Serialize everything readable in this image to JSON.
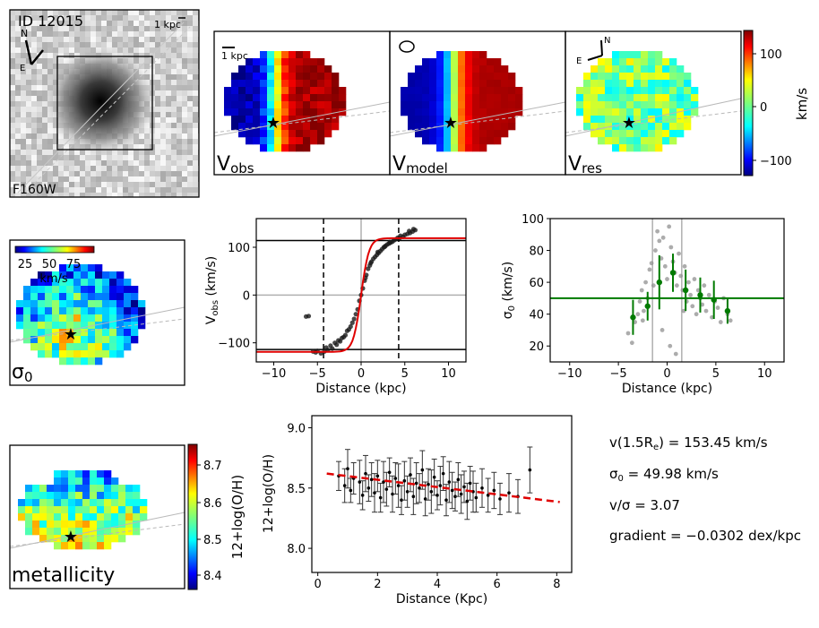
{
  "galaxy": {
    "id_label": "ID 12015",
    "filter": "F160W",
    "scale_label": "1 kpc",
    "north": "N",
    "east": "E"
  },
  "velocity_maps": {
    "panels": [
      {
        "label": "V",
        "sub": "obs"
      },
      {
        "label": "V",
        "sub": "model"
      },
      {
        "label": "V",
        "sub": "res"
      }
    ],
    "scale_label": "1 kpc",
    "colorbar": {
      "label": "km/s",
      "ticks": [
        "100",
        "0",
        "−100"
      ]
    }
  },
  "sigma_map": {
    "label": "σ",
    "sub": "0",
    "colorbar_ticks": [
      "25",
      "50",
      "75"
    ],
    "colorbar_unit": "km/s"
  },
  "metallicity_map": {
    "label": "metallicity",
    "colorbar_label": "12+log(O/H)",
    "colorbar_ticks": [
      "8.7",
      "8.6",
      "8.5",
      "8.4"
    ]
  },
  "stats": {
    "vrot": "v(1.5R",
    "vrot_sub": "e",
    "vrot_value": ") = 153.45 km/s",
    "sigma": "σ",
    "sigma_sub": "0",
    "sigma_value": " = 49.98 km/s",
    "ratio": "v/σ = 3.07",
    "gradient": "gradient = −0.0302 dex/kpc"
  },
  "chart_data": [
    {
      "type": "scatter",
      "name": "rotation-curve",
      "xlabel": "Distance (kpc)",
      "ylabel": "V",
      "ylabel_sub": "obs",
      "ylabel_unit": " (km/s)",
      "xlim": [
        -12,
        12
      ],
      "ylim": [
        -140,
        160
      ],
      "xticks": [
        -10,
        -5,
        0,
        5,
        10
      ],
      "yticks": [
        -100,
        0,
        100
      ],
      "xtick_labels": [
        "−10",
        "−5",
        "0",
        "5",
        "10"
      ],
      "ytick_labels": [
        "−100",
        "0",
        "100"
      ],
      "hlines": [
        114,
        -114
      ],
      "vlines_dashed": [
        -4.3,
        4.3
      ],
      "model": {
        "vmax": 119,
        "rt": 0.9
      },
      "points": [
        [
          -6.3,
          -45
        ],
        [
          -6.0,
          -44
        ],
        [
          -5.5,
          -118
        ],
        [
          -5.2,
          -120
        ],
        [
          -5.0,
          -117
        ],
        [
          -4.6,
          -122
        ],
        [
          -4.2,
          -118
        ],
        [
          -4.0,
          -110
        ],
        [
          -3.8,
          -115
        ],
        [
          -3.5,
          -106
        ],
        [
          -3.3,
          -112
        ],
        [
          -3.0,
          -100
        ],
        [
          -2.8,
          -104
        ],
        [
          -2.6,
          -95
        ],
        [
          -2.4,
          -97
        ],
        [
          -2.2,
          -90
        ],
        [
          -2.0,
          -88
        ],
        [
          -1.8,
          -84
        ],
        [
          -1.6,
          -75
        ],
        [
          -1.4,
          -72
        ],
        [
          -1.2,
          -66
        ],
        [
          -1.0,
          -58
        ],
        [
          -0.8,
          -50
        ],
        [
          -0.6,
          -40
        ],
        [
          -0.4,
          -30
        ],
        [
          -0.2,
          -12
        ],
        [
          0.0,
          0
        ],
        [
          0.2,
          14
        ],
        [
          0.4,
          30
        ],
        [
          0.6,
          42
        ],
        [
          0.8,
          55
        ],
        [
          1.0,
          62
        ],
        [
          1.2,
          70
        ],
        [
          1.4,
          76
        ],
        [
          1.6,
          80
        ],
        [
          1.8,
          84
        ],
        [
          2.0,
          88
        ],
        [
          2.2,
          92
        ],
        [
          2.4,
          96
        ],
        [
          2.6,
          100
        ],
        [
          2.8,
          103
        ],
        [
          3.0,
          106
        ],
        [
          3.2,
          108
        ],
        [
          3.4,
          110
        ],
        [
          3.6,
          112
        ],
        [
          3.8,
          115
        ],
        [
          4.0,
          117
        ],
        [
          4.2,
          120
        ],
        [
          4.5,
          124
        ],
        [
          4.8,
          122
        ],
        [
          5.0,
          126
        ],
        [
          5.3,
          128
        ],
        [
          5.6,
          130
        ],
        [
          5.9,
          133
        ],
        [
          6.2,
          136
        ],
        [
          0.5,
          36
        ],
        [
          1.1,
          67
        ],
        [
          1.9,
          90
        ],
        [
          2.7,
          101
        ],
        [
          3.3,
          111
        ],
        [
          4.4,
          119
        ],
        [
          5.5,
          134
        ],
        [
          6.0,
          138
        ]
      ]
    },
    {
      "type": "scatter",
      "name": "dispersion-profile",
      "xlabel": "Distance (kpc)",
      "ylabel": "σ",
      "ylabel_sub": "0",
      "ylabel_unit": " (km/s)",
      "xlim": [
        -12,
        12
      ],
      "ylim": [
        10,
        100
      ],
      "xticks": [
        -10,
        -5,
        0,
        5,
        10
      ],
      "yticks": [
        20,
        40,
        60,
        80,
        100
      ],
      "xtick_labels": [
        "−10",
        "−5",
        "0",
        "5",
        "10"
      ],
      "ytick_labels": [
        "20",
        "40",
        "60",
        "80",
        "100"
      ],
      "hline": 49.98,
      "vlines": [
        -1.5,
        1.5
      ],
      "points": [
        [
          -4.0,
          28
        ],
        [
          -3.6,
          22
        ],
        [
          -3.3,
          35
        ],
        [
          -3.0,
          40
        ],
        [
          -2.8,
          48
        ],
        [
          -2.6,
          55
        ],
        [
          -2.4,
          42
        ],
        [
          -2.2,
          60
        ],
        [
          -2.0,
          50
        ],
        [
          -1.8,
          68
        ],
        [
          -1.6,
          72
        ],
        [
          -1.4,
          58
        ],
        [
          -1.2,
          80
        ],
        [
          -1.0,
          92
        ],
        [
          -0.8,
          86
        ],
        [
          -0.6,
          75
        ],
        [
          -0.4,
          88
        ],
        [
          -0.2,
          70
        ],
        [
          0.0,
          62
        ],
        [
          0.2,
          95
        ],
        [
          0.4,
          82
        ],
        [
          0.6,
          73
        ],
        [
          0.8,
          66
        ],
        [
          1.0,
          58
        ],
        [
          1.2,
          78
        ],
        [
          1.4,
          64
        ],
        [
          1.6,
          55
        ],
        [
          1.8,
          70
        ],
        [
          2.0,
          48
        ],
        [
          2.2,
          60
        ],
        [
          2.4,
          52
        ],
        [
          2.6,
          45
        ],
        [
          2.8,
          62
        ],
        [
          3.0,
          40
        ],
        [
          3.2,
          55
        ],
        [
          3.4,
          50
        ],
        [
          3.6,
          46
        ],
        [
          3.8,
          58
        ],
        [
          4.0,
          42
        ],
        [
          4.3,
          52
        ],
        [
          4.6,
          38
        ],
        [
          4.9,
          48
        ],
        [
          5.2,
          44
        ],
        [
          5.5,
          35
        ],
        [
          5.8,
          50
        ],
        [
          6.2,
          40
        ],
        [
          6.5,
          36
        ],
        [
          -0.5,
          30
        ],
        [
          0.3,
          20
        ],
        [
          1.7,
          42
        ],
        [
          -2.5,
          36
        ],
        [
          0.9,
          15
        ]
      ],
      "binned": [
        {
          "x": -3.5,
          "y": 38,
          "err": 11
        },
        {
          "x": -2.0,
          "y": 45,
          "err": 9
        },
        {
          "x": -0.8,
          "y": 60,
          "err": 17
        },
        {
          "x": 0.6,
          "y": 66,
          "err": 12
        },
        {
          "x": 1.9,
          "y": 55,
          "err": 13
        },
        {
          "x": 3.4,
          "y": 52,
          "err": 11
        },
        {
          "x": 4.8,
          "y": 49,
          "err": 12
        },
        {
          "x": 6.2,
          "y": 42,
          "err": 8
        }
      ]
    },
    {
      "type": "scatter",
      "name": "metallicity-gradient",
      "xlabel": "Distance (Kpc)",
      "ylabel": "12+log(O/H)",
      "xlim": [
        -0.2,
        8.5
      ],
      "ylim": [
        7.8,
        9.1
      ],
      "xticks": [
        0,
        2,
        4,
        6,
        8
      ],
      "yticks": [
        8.0,
        8.5,
        9.0
      ],
      "xtick_labels": [
        "0",
        "2",
        "4",
        "6",
        "8"
      ],
      "ytick_labels": [
        "8.0",
        "8.5",
        "9.0"
      ],
      "fit": {
        "x0": 0.3,
        "y0": 8.62,
        "x1": 8.1,
        "y1": 8.384
      },
      "points": [
        [
          0.7,
          8.6,
          0.12
        ],
        [
          0.9,
          8.52,
          0.14
        ],
        [
          1.0,
          8.66,
          0.16
        ],
        [
          1.1,
          8.48,
          0.1
        ],
        [
          1.2,
          8.58,
          0.13
        ],
        [
          1.4,
          8.55,
          0.18
        ],
        [
          1.5,
          8.44,
          0.12
        ],
        [
          1.6,
          8.62,
          0.15
        ],
        [
          1.7,
          8.5,
          0.11
        ],
        [
          1.8,
          8.57,
          0.14
        ],
        [
          1.9,
          8.46,
          0.16
        ],
        [
          2.0,
          8.6,
          0.13
        ],
        [
          2.1,
          8.42,
          0.12
        ],
        [
          2.2,
          8.55,
          0.17
        ],
        [
          2.3,
          8.49,
          0.14
        ],
        [
          2.4,
          8.63,
          0.12
        ],
        [
          2.5,
          8.45,
          0.15
        ],
        [
          2.6,
          8.58,
          0.13
        ],
        [
          2.7,
          8.52,
          0.18
        ],
        [
          2.8,
          8.4,
          0.12
        ],
        [
          2.9,
          8.56,
          0.16
        ],
        [
          3.0,
          8.47,
          0.13
        ],
        [
          3.1,
          8.61,
          0.14
        ],
        [
          3.2,
          8.43,
          0.15
        ],
        [
          3.3,
          8.54,
          0.17
        ],
        [
          3.4,
          8.5,
          0.12
        ],
        [
          3.5,
          8.65,
          0.16
        ],
        [
          3.6,
          8.41,
          0.14
        ],
        [
          3.7,
          8.53,
          0.13
        ],
        [
          3.8,
          8.47,
          0.18
        ],
        [
          3.9,
          8.59,
          0.15
        ],
        [
          4.0,
          8.44,
          0.12
        ],
        [
          4.1,
          8.52,
          0.16
        ],
        [
          4.2,
          8.62,
          0.14
        ],
        [
          4.3,
          8.4,
          0.13
        ],
        [
          4.4,
          8.55,
          0.17
        ],
        [
          4.5,
          8.48,
          0.15
        ],
        [
          4.6,
          8.43,
          0.12
        ],
        [
          4.7,
          8.57,
          0.14
        ],
        [
          4.8,
          8.45,
          0.16
        ],
        [
          4.9,
          8.51,
          0.13
        ],
        [
          5.0,
          8.39,
          0.15
        ],
        [
          5.1,
          8.54,
          0.14
        ],
        [
          5.2,
          8.47,
          0.17
        ],
        [
          5.3,
          8.42,
          0.12
        ],
        [
          5.5,
          8.5,
          0.16
        ],
        [
          5.7,
          8.44,
          0.14
        ],
        [
          5.9,
          8.48,
          0.15
        ],
        [
          6.1,
          8.41,
          0.13
        ],
        [
          6.4,
          8.46,
          0.16
        ],
        [
          6.7,
          8.43,
          0.14
        ],
        [
          7.1,
          8.65,
          0.19
        ]
      ]
    }
  ]
}
